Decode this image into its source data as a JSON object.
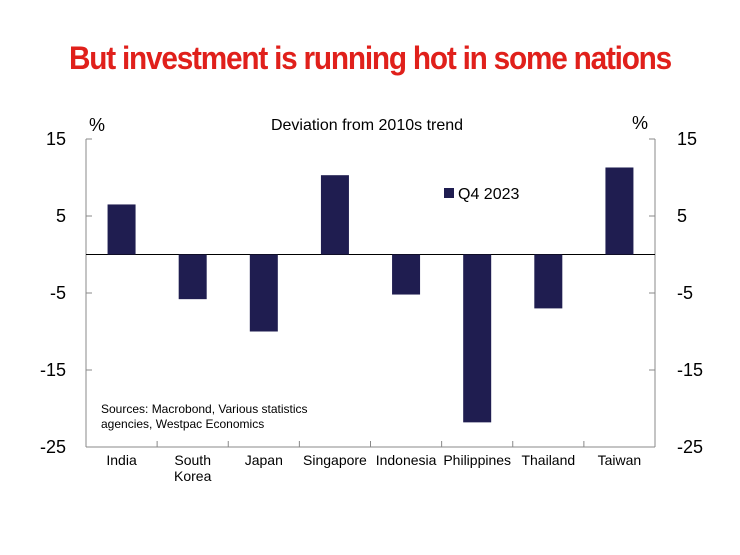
{
  "title": "But investment is running hot in some nations",
  "chart_data": {
    "type": "bar",
    "subtitle": "Deviation from 2010s trend",
    "left_unit": "%",
    "right_unit": "%",
    "categories": [
      [
        "India"
      ],
      [
        "South",
        "Korea"
      ],
      [
        "Japan"
      ],
      [
        "Singapore"
      ],
      [
        "Indonesia"
      ],
      [
        "Philippines"
      ],
      [
        "Thailand"
      ],
      [
        "Taiwan"
      ]
    ],
    "series": [
      {
        "name": "Q4 2023",
        "color": "#1f1d50",
        "values": [
          6.5,
          -5.8,
          -10,
          10.3,
          -5.2,
          -21.8,
          -7,
          11.3
        ]
      }
    ],
    "ylim": [
      -25,
      15
    ],
    "yticks": [
      15,
      5,
      -5,
      -15,
      -25
    ],
    "legend_position": "top-right",
    "source_lines": [
      "Sources: Macrobond, Various statistics",
      "agencies, Westpac Economics"
    ]
  }
}
